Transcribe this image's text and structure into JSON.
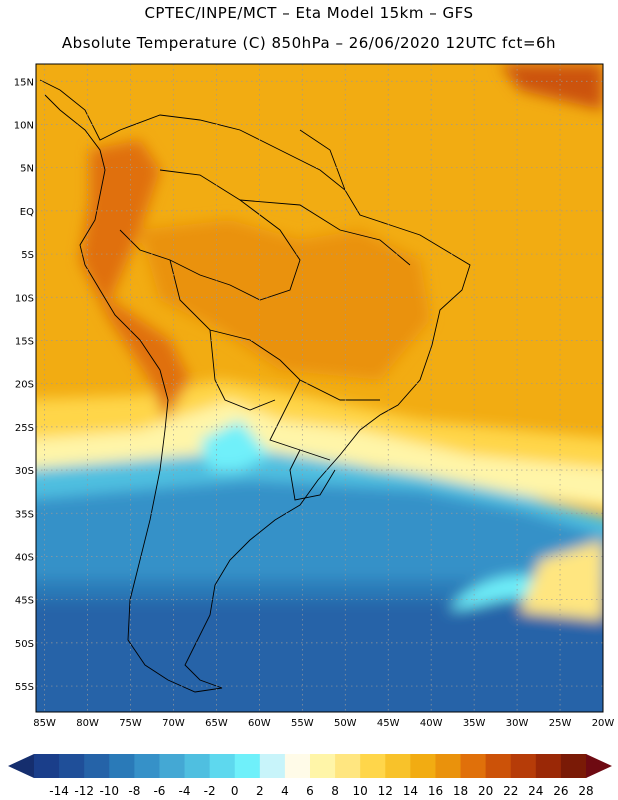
{
  "header": {
    "line1": "CPTEC/INPE/MCT –   Eta Model 15km – GFS",
    "line2": "Absolute Temperature (C) 850hPa – 26/06/2020 12UTC fct=6h"
  },
  "map": {
    "lat_labels": [
      "15N",
      "10N",
      "5N",
      "EQ",
      "5S",
      "10S",
      "15S",
      "20S",
      "25S",
      "30S",
      "35S",
      "40S",
      "45S",
      "50S",
      "55S"
    ],
    "lat_values": [
      15,
      10,
      5,
      0,
      -5,
      -10,
      -15,
      -20,
      -25,
      -30,
      -35,
      -40,
      -45,
      -50,
      -55
    ],
    "lon_labels": [
      "85W",
      "80W",
      "75W",
      "70W",
      "65W",
      "60W",
      "55W",
      "50W",
      "45W",
      "40W",
      "35W",
      "30W",
      "25W",
      "20W"
    ],
    "lon_values": [
      -85,
      -80,
      -75,
      -70,
      -65,
      -60,
      -55,
      -50,
      -45,
      -40,
      -35,
      -30,
      -25,
      -20
    ],
    "lat_range": [
      -58,
      17
    ],
    "lon_range": [
      -86,
      -20
    ],
    "colors": {
      "land_border": "#000000",
      "grid": "#999999"
    }
  },
  "colorbar": {
    "labels": [
      "-14",
      "-12",
      "-10",
      "-8",
      "-6",
      "-4",
      "-2",
      "0",
      "2",
      "4",
      "6",
      "8",
      "10",
      "12",
      "14",
      "16",
      "18",
      "20",
      "22",
      "24",
      "26",
      "28"
    ],
    "colors": [
      "#1a3e8a",
      "#1f4f99",
      "#2563a8",
      "#2a7ab8",
      "#3691c8",
      "#44a8d4",
      "#4fbfe0",
      "#5ed8ee",
      "#6ff0fa",
      "#c8f4fa",
      "#fffbe8",
      "#fff5a8",
      "#ffe680",
      "#ffd64a",
      "#f8c22a",
      "#f2ac12",
      "#ea920c",
      "#e0700a",
      "#cc5208",
      "#b63c08",
      "#9a2806",
      "#7a1a06"
    ],
    "left_arrow_color": "#152e6e",
    "right_arrow_color": "#6e0a12"
  }
}
